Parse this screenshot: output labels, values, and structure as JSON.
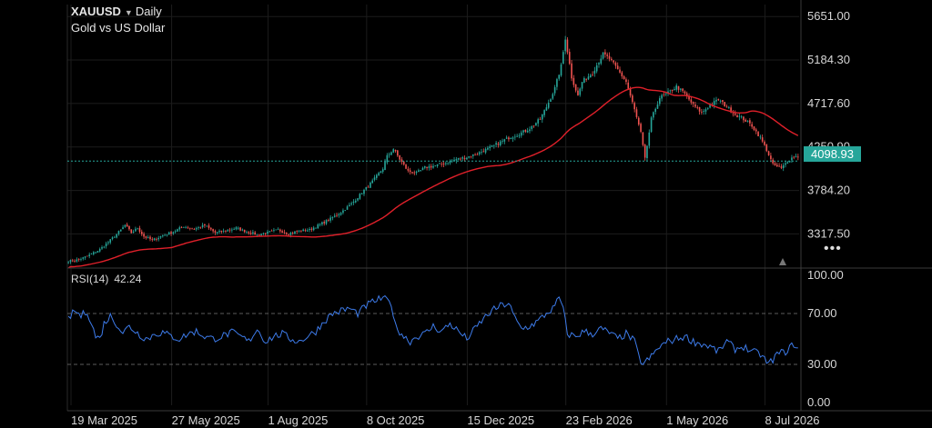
{
  "header": {
    "symbol": "XAUUSD",
    "interval": "Daily",
    "description": "Gold vs US Dollar"
  },
  "price_tag": "4098.93",
  "rsi_label": {
    "name": "RSI(14)",
    "value": "42.24"
  },
  "colors": {
    "background": "#000000",
    "grid": "#1c1c1c",
    "candle_up": "#26a69a",
    "candle_down": "#ef5350",
    "moving_average": "#e0202a",
    "rsi_line": "#3d7bea",
    "price_line": "#26a69a"
  },
  "icons": {
    "more": "ellipsis-icon",
    "caret": "caret-down-icon",
    "collapse": "triangle-up-icon"
  },
  "chart_data": [
    {
      "type": "candlestick",
      "name": "price",
      "ylim": [
        2980,
        5780
      ],
      "y_ticks": [
        "5651.00",
        "5184.30",
        "4717.60",
        "4250.90",
        "3784.20",
        "3317.50"
      ],
      "x_ticks": [
        "19 Mar 2025",
        "27 May 2025",
        "1 Aug 2025",
        "8 Oct 2025",
        "15 Dec 2025",
        "23 Feb 2026",
        "1 May 2026",
        "8 Jul 2026"
      ],
      "last_price": 4098.93,
      "overlay": "moving average (red line)",
      "anchor_points": [
        [
          0,
          3025
        ],
        [
          5,
          3040
        ],
        [
          10,
          3090
        ],
        [
          15,
          3150
        ],
        [
          20,
          3250
        ],
        [
          25,
          3360
        ],
        [
          27,
          3410
        ],
        [
          30,
          3330
        ],
        [
          33,
          3380
        ],
        [
          36,
          3290
        ],
        [
          40,
          3250
        ],
        [
          45,
          3300
        ],
        [
          50,
          3340
        ],
        [
          55,
          3400
        ],
        [
          60,
          3370
        ],
        [
          65,
          3410
        ],
        [
          70,
          3330
        ],
        [
          75,
          3350
        ],
        [
          80,
          3380
        ],
        [
          85,
          3340
        ],
        [
          90,
          3310
        ],
        [
          95,
          3330
        ],
        [
          100,
          3360
        ],
        [
          105,
          3320
        ],
        [
          110,
          3350
        ],
        [
          115,
          3360
        ],
        [
          120,
          3420
        ],
        [
          125,
          3480
        ],
        [
          130,
          3550
        ],
        [
          135,
          3640
        ],
        [
          140,
          3760
        ],
        [
          145,
          3880
        ],
        [
          150,
          4020
        ],
        [
          152,
          4150
        ],
        [
          155,
          4230
        ],
        [
          158,
          4120
        ],
        [
          162,
          3990
        ],
        [
          166,
          3970
        ],
        [
          170,
          4030
        ],
        [
          175,
          4050
        ],
        [
          180,
          4080
        ],
        [
          185,
          4120
        ],
        [
          190,
          4140
        ],
        [
          195,
          4180
        ],
        [
          200,
          4230
        ],
        [
          205,
          4290
        ],
        [
          210,
          4350
        ],
        [
          215,
          4390
        ],
        [
          220,
          4450
        ],
        [
          225,
          4550
        ],
        [
          228,
          4680
        ],
        [
          232,
          4880
        ],
        [
          235,
          5120
        ],
        [
          237,
          5420
        ],
        [
          240,
          5000
        ],
        [
          243,
          4800
        ],
        [
          245,
          4950
        ],
        [
          250,
          5050
        ],
        [
          255,
          5250
        ],
        [
          258,
          5200
        ],
        [
          262,
          5080
        ],
        [
          266,
          4950
        ],
        [
          270,
          4650
        ],
        [
          273,
          4400
        ],
        [
          275,
          4120
        ],
        [
          278,
          4550
        ],
        [
          282,
          4780
        ],
        [
          286,
          4830
        ],
        [
          290,
          4900
        ],
        [
          294,
          4820
        ],
        [
          298,
          4700
        ],
        [
          302,
          4620
        ],
        [
          306,
          4700
        ],
        [
          310,
          4760
        ],
        [
          314,
          4680
        ],
        [
          318,
          4600
        ],
        [
          322,
          4550
        ],
        [
          326,
          4480
        ],
        [
          330,
          4350
        ],
        [
          333,
          4220
        ],
        [
          336,
          4060
        ],
        [
          340,
          4020
        ],
        [
          343,
          4100
        ],
        [
          346,
          4150
        ]
      ]
    },
    {
      "type": "line",
      "name": "RSI(14)",
      "ylim": [
        0,
        100
      ],
      "y_ticks": [
        "100.00",
        "70.00",
        "30.00",
        "0.00"
      ],
      "guide_levels": [
        70,
        30
      ],
      "last_value": 42.24,
      "anchor_points": [
        [
          0,
          66
        ],
        [
          3,
          72
        ],
        [
          6,
          68
        ],
        [
          9,
          72
        ],
        [
          11,
          62
        ],
        [
          13,
          52
        ],
        [
          15,
          50
        ],
        [
          17,
          62
        ],
        [
          20,
          68
        ],
        [
          23,
          62
        ],
        [
          26,
          55
        ],
        [
          29,
          60
        ],
        [
          32,
          56
        ],
        [
          35,
          52
        ],
        [
          38,
          50
        ],
        [
          41,
          54
        ],
        [
          45,
          55
        ],
        [
          49,
          52
        ],
        [
          53,
          50
        ],
        [
          57,
          54
        ],
        [
          61,
          56
        ],
        [
          65,
          52
        ],
        [
          69,
          50
        ],
        [
          73,
          52
        ],
        [
          78,
          55
        ],
        [
          82,
          52
        ],
        [
          86,
          48
        ],
        [
          90,
          58
        ],
        [
          94,
          48
        ],
        [
          98,
          52
        ],
        [
          102,
          54
        ],
        [
          106,
          50
        ],
        [
          110,
          48
        ],
        [
          114,
          52
        ],
        [
          118,
          56
        ],
        [
          122,
          64
        ],
        [
          126,
          70
        ],
        [
          130,
          72
        ],
        [
          134,
          74
        ],
        [
          138,
          70
        ],
        [
          142,
          76
        ],
        [
          146,
          80
        ],
        [
          150,
          82
        ],
        [
          154,
          78
        ],
        [
          156,
          60
        ],
        [
          160,
          52
        ],
        [
          163,
          48
        ],
        [
          166,
          52
        ],
        [
          170,
          54
        ],
        [
          174,
          60
        ],
        [
          178,
          56
        ],
        [
          182,
          62
        ],
        [
          186,
          56
        ],
        [
          190,
          50
        ],
        [
          194,
          58
        ],
        [
          198,
          66
        ],
        [
          202,
          72
        ],
        [
          206,
          76
        ],
        [
          210,
          78
        ],
        [
          213,
          66
        ],
        [
          216,
          58
        ],
        [
          220,
          60
        ],
        [
          224,
          64
        ],
        [
          228,
          70
        ],
        [
          232,
          75
        ],
        [
          234,
          83
        ],
        [
          236,
          73
        ],
        [
          238,
          54
        ],
        [
          242,
          52
        ],
        [
          246,
          56
        ],
        [
          250,
          54
        ],
        [
          254,
          58
        ],
        [
          258,
          55
        ],
        [
          262,
          50
        ],
        [
          266,
          54
        ],
        [
          270,
          48
        ],
        [
          272,
          36
        ],
        [
          274,
          30
        ],
        [
          278,
          36
        ],
        [
          282,
          44
        ],
        [
          286,
          48
        ],
        [
          290,
          50
        ],
        [
          294,
          52
        ],
        [
          298,
          48
        ],
        [
          302,
          46
        ],
        [
          306,
          44
        ],
        [
          310,
          40
        ],
        [
          314,
          48
        ],
        [
          318,
          42
        ],
        [
          322,
          44
        ],
        [
          326,
          40
        ],
        [
          330,
          38
        ],
        [
          334,
          30
        ],
        [
          338,
          38
        ],
        [
          342,
          40
        ],
        [
          346,
          46
        ],
        [
          348,
          42
        ]
      ]
    }
  ]
}
